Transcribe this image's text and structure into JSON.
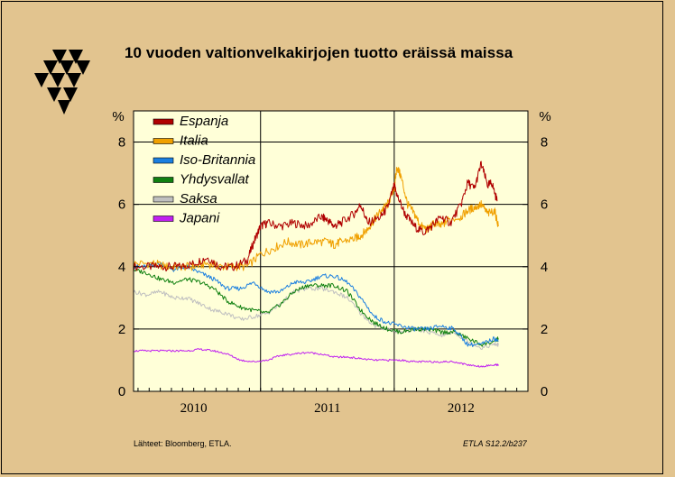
{
  "title": "10 vuoden valtionvelkakirjojen tuotto eräissä maissa",
  "source": "Lähteet:   Bloomberg, ETLA.",
  "code": "ETLA S12.2/b237",
  "chart_data": {
    "type": "line",
    "unit_left": "%",
    "unit_right": "%",
    "ylim": [
      0,
      9
    ],
    "yticks": [
      0,
      2,
      4,
      6,
      8
    ],
    "xlim": [
      2009.55,
      2012.5
    ],
    "xticks": [
      {
        "label": "2010",
        "at": 2010.0
      },
      {
        "label": "2011",
        "at": 2011.0
      },
      {
        "label": "2012",
        "at": 2012.0
      }
    ],
    "year_boundaries": [
      2010.5,
      2011.5
    ],
    "grid": true,
    "legend_position": "top-left",
    "series": [
      {
        "name": "Espanja",
        "color": "#b00000",
        "x": [
          2009.55,
          2009.7,
          2009.8,
          2009.9,
          2010.0,
          2010.1,
          2010.2,
          2010.3,
          2010.4,
          2010.45,
          2010.5,
          2010.55,
          2010.65,
          2010.75,
          2010.85,
          2010.95,
          2011.0,
          2011.05,
          2011.1,
          2011.2,
          2011.25,
          2011.3,
          2011.4,
          2011.45,
          2011.5,
          2011.52,
          2011.58,
          2011.65,
          2011.72,
          2011.78,
          2011.85,
          2011.92,
          2012.0,
          2012.05,
          2012.1,
          2012.15,
          2012.2,
          2012.23,
          2012.27
        ],
        "y": [
          4.0,
          4.0,
          4.0,
          4.0,
          4.1,
          4.3,
          4.0,
          4.0,
          4.2,
          4.8,
          5.3,
          5.4,
          5.3,
          5.4,
          5.3,
          5.6,
          5.5,
          5.3,
          5.4,
          5.7,
          6.0,
          5.4,
          5.6,
          5.9,
          6.6,
          6.3,
          5.7,
          5.3,
          5.1,
          5.3,
          5.6,
          5.4,
          6.0,
          6.7,
          6.5,
          7.3,
          6.6,
          6.7,
          6.1
        ]
      },
      {
        "name": "Italia",
        "color": "#f0a000",
        "x": [
          2009.55,
          2009.7,
          2009.8,
          2009.9,
          2010.0,
          2010.1,
          2010.2,
          2010.3,
          2010.4,
          2010.5,
          2010.6,
          2010.7,
          2010.8,
          2010.9,
          2011.0,
          2011.05,
          2011.1,
          2011.2,
          2011.25,
          2011.3,
          2011.35,
          2011.4,
          2011.45,
          2011.5,
          2011.52,
          2011.55,
          2011.6,
          2011.65,
          2011.7,
          2011.75,
          2011.8,
          2011.85,
          2011.9,
          2012.0,
          2012.05,
          2012.1,
          2012.15,
          2012.2,
          2012.25,
          2012.28
        ],
        "y": [
          4.1,
          4.1,
          4.0,
          4.0,
          4.0,
          4.1,
          4.0,
          4.0,
          4.0,
          4.4,
          4.6,
          4.8,
          4.7,
          4.8,
          4.8,
          4.7,
          4.8,
          4.9,
          5.0,
          5.2,
          5.5,
          5.8,
          6.0,
          6.5,
          7.2,
          6.9,
          6.0,
          5.7,
          5.3,
          5.2,
          5.4,
          5.3,
          5.5,
          5.6,
          5.8,
          5.9,
          6.0,
          5.7,
          5.8,
          5.3
        ]
      },
      {
        "name": "Iso-Britannia",
        "color": "#1b7fe0",
        "x": [
          2009.55,
          2009.65,
          2009.75,
          2009.85,
          2009.95,
          2010.05,
          2010.15,
          2010.25,
          2010.35,
          2010.45,
          2010.55,
          2010.65,
          2010.75,
          2010.85,
          2010.95,
          2011.05,
          2011.15,
          2011.25,
          2011.35,
          2011.45,
          2011.55,
          2011.65,
          2011.75,
          2011.85,
          2011.95,
          2012.05,
          2012.15,
          2012.25,
          2012.28
        ],
        "y": [
          4.0,
          4.0,
          4.1,
          3.9,
          4.0,
          3.8,
          3.6,
          3.3,
          3.3,
          3.5,
          3.2,
          3.2,
          3.5,
          3.5,
          3.7,
          3.7,
          3.5,
          3.0,
          2.4,
          2.2,
          2.1,
          2.0,
          2.0,
          2.1,
          2.0,
          1.5,
          1.5,
          1.7,
          1.6
        ]
      },
      {
        "name": "Yhdysvallat",
        "color": "#108010",
        "x": [
          2009.55,
          2009.65,
          2009.75,
          2009.85,
          2009.95,
          2010.05,
          2010.15,
          2010.25,
          2010.35,
          2010.45,
          2010.55,
          2010.65,
          2010.75,
          2010.85,
          2010.95,
          2011.05,
          2011.15,
          2011.25,
          2011.35,
          2011.45,
          2011.55,
          2011.65,
          2011.75,
          2011.85,
          2011.95,
          2012.05,
          2012.15,
          2012.25,
          2012.28
        ],
        "y": [
          3.9,
          3.8,
          3.6,
          3.5,
          3.6,
          3.5,
          3.3,
          2.9,
          2.7,
          2.6,
          2.5,
          2.8,
          3.2,
          3.4,
          3.4,
          3.4,
          3.2,
          2.6,
          2.2,
          2.0,
          1.9,
          2.0,
          2.0,
          1.9,
          1.9,
          1.7,
          1.5,
          1.6,
          1.7
        ]
      },
      {
        "name": "Saksa",
        "color": "#c0c0c0",
        "x": [
          2009.55,
          2009.65,
          2009.75,
          2009.85,
          2009.95,
          2010.05,
          2010.15,
          2010.25,
          2010.35,
          2010.45,
          2010.55,
          2010.65,
          2010.75,
          2010.85,
          2010.95,
          2011.05,
          2011.15,
          2011.25,
          2011.35,
          2011.45,
          2011.55,
          2011.65,
          2011.75,
          2011.85,
          2011.95,
          2012.05,
          2012.15,
          2012.25,
          2012.28
        ],
        "y": [
          3.2,
          3.1,
          3.2,
          3.0,
          3.0,
          2.8,
          2.6,
          2.5,
          2.3,
          2.4,
          2.5,
          2.8,
          3.2,
          3.3,
          3.3,
          3.2,
          3.0,
          2.5,
          2.1,
          2.0,
          1.9,
          2.0,
          1.9,
          1.8,
          1.9,
          1.6,
          1.4,
          1.5,
          1.5
        ]
      },
      {
        "name": "Japani",
        "color": "#c020f0",
        "x": [
          2009.55,
          2009.65,
          2009.75,
          2009.85,
          2009.95,
          2010.05,
          2010.15,
          2010.25,
          2010.35,
          2010.45,
          2010.55,
          2010.65,
          2010.75,
          2010.85,
          2010.95,
          2011.05,
          2011.15,
          2011.25,
          2011.35,
          2011.45,
          2011.55,
          2011.65,
          2011.75,
          2011.85,
          2011.95,
          2012.05,
          2012.15,
          2012.25,
          2012.28
        ],
        "y": [
          1.3,
          1.3,
          1.3,
          1.3,
          1.3,
          1.35,
          1.3,
          1.2,
          1.0,
          0.95,
          1.0,
          1.15,
          1.2,
          1.25,
          1.2,
          1.1,
          1.1,
          1.05,
          1.0,
          1.0,
          1.0,
          0.95,
          0.95,
          0.95,
          0.95,
          0.85,
          0.8,
          0.85,
          0.85
        ]
      }
    ]
  }
}
